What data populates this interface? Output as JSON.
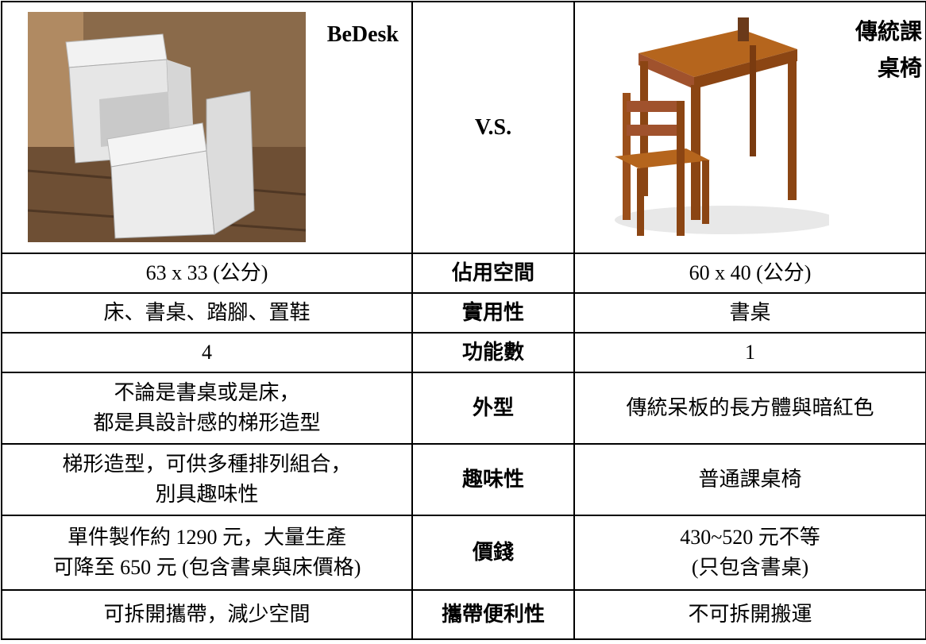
{
  "header": {
    "left_title": "BeDesk",
    "middle": "V.S.",
    "right_title": [
      "傳統課",
      "桌椅"
    ]
  },
  "rows": [
    {
      "left": [
        "63 x 33 (公分)"
      ],
      "label": "佔用空間",
      "right": [
        "60 x 40 (公分)"
      ]
    },
    {
      "left": [
        "床、書桌、踏腳、置鞋"
      ],
      "label": "實用性",
      "right": [
        "書桌"
      ]
    },
    {
      "left": [
        "4"
      ],
      "label": "功能數",
      "right": [
        "1"
      ]
    },
    {
      "left": [
        "不論是書桌或是床，",
        "都是具設計感的梯形造型"
      ],
      "label": "外型",
      "right": [
        "傳統呆板的長方體與暗紅色"
      ]
    },
    {
      "left": [
        "梯形造型，可供多種排列組合，",
        "別具趣味性"
      ],
      "label": "趣味性",
      "right": [
        "普通課桌椅"
      ]
    },
    {
      "left": [
        "單件製作約 1290 元，大量生產",
        "可降至 650 元 (包含書桌與床價格)"
      ],
      "label": "價錢",
      "right": [
        "430~520 元不等",
        "(只包含書桌)"
      ]
    },
    {
      "left": [
        "可拆開攜帶，減少空間"
      ],
      "label": "攜帶便利性",
      "right": [
        "不可拆開搬運"
      ]
    }
  ]
}
